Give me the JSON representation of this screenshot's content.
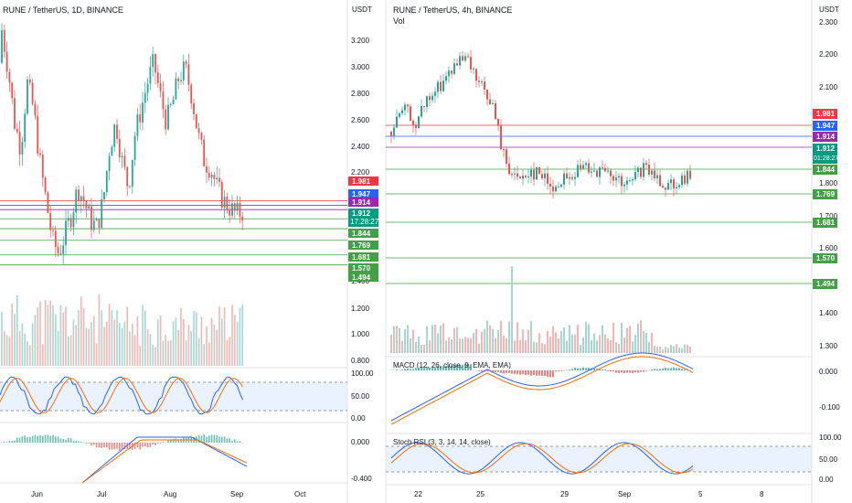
{
  "colors": {
    "up": "#26a69a",
    "down": "#ef5350",
    "red_tag": "#f23645",
    "blue_tag": "#2962ff",
    "purple_tag": "#9c27b0",
    "green_tag": "#43a047",
    "teal_tag": "#089981",
    "macd_line": "#2962ff",
    "signal_line": "#ff6d00",
    "stoch_k": "#2962ff",
    "stoch_d": "#ff6d00",
    "band_fill": "#dbeafe"
  },
  "left_chart": {
    "title": "RUNE / TetherUS, 1D, BINANCE",
    "price_axis_unit": "USDT",
    "price_ticks": [
      "3.200",
      "3.000",
      "2.800",
      "2.600",
      "2.400",
      "2.200",
      "1.400"
    ],
    "volume_axis_ticks": [
      "1.200",
      "1.000",
      "0.800"
    ],
    "stoch_axis_ticks": [
      "100.00",
      "50.00",
      "0.00"
    ],
    "macd_axis_ticks": [
      "0.000",
      "-0.400"
    ],
    "time_labels": [
      "Jun",
      "Jul",
      "Aug",
      "Sep",
      "Oct"
    ],
    "price_tags": [
      {
        "value": "1.981",
        "color_key": "red_tag"
      },
      {
        "value": "1.947",
        "color_key": "blue_tag"
      },
      {
        "value": "1.914",
        "color_key": "purple_tag"
      },
      {
        "value": "1.912",
        "countdown": "17:28:27",
        "color_key": "teal_tag"
      },
      {
        "value": "1.844",
        "color_key": "green_tag"
      },
      {
        "value": "1.769",
        "color_key": "green_tag"
      },
      {
        "value": "1.681",
        "color_key": "green_tag"
      },
      {
        "value": "1.570",
        "color_key": "green_tag"
      },
      {
        "value": "1.494",
        "color_key": "green_tag"
      }
    ]
  },
  "right_chart": {
    "title": "RUNE / TetherUS, 4h, BINANCE",
    "volume_label": "Vol",
    "price_axis_unit": "USDT",
    "price_ticks": [
      "2.300",
      "2.200",
      "2.100",
      "1.800",
      "1.700",
      "1.600",
      "1.400",
      "1.300"
    ],
    "macd_label": "MACD (12, 26, close, 9, EMA, EMA)",
    "macd_axis_ticks": [
      "0.000",
      "-0.100"
    ],
    "stoch_label": "Stoch RSI (3, 3, 14, 14, close)",
    "stoch_axis_ticks": [
      "100.00",
      "50.00",
      "0.00"
    ],
    "time_labels": [
      "22",
      "25",
      "29",
      "Sep",
      "5",
      "8"
    ],
    "price_tags": [
      {
        "value": "1.981",
        "color_key": "red_tag"
      },
      {
        "value": "1.947",
        "color_key": "blue_tag"
      },
      {
        "value": "1.914",
        "color_key": "purple_tag"
      },
      {
        "value": "1.912",
        "countdown": "01:28:27",
        "color_key": "teal_tag"
      },
      {
        "value": "1.844",
        "color_key": "green_tag"
      },
      {
        "value": "1.769",
        "color_key": "green_tag"
      },
      {
        "value": "1.681",
        "color_key": "green_tag"
      },
      {
        "value": "1.570",
        "color_key": "green_tag"
      },
      {
        "value": "1.494",
        "color_key": "green_tag"
      }
    ]
  }
}
